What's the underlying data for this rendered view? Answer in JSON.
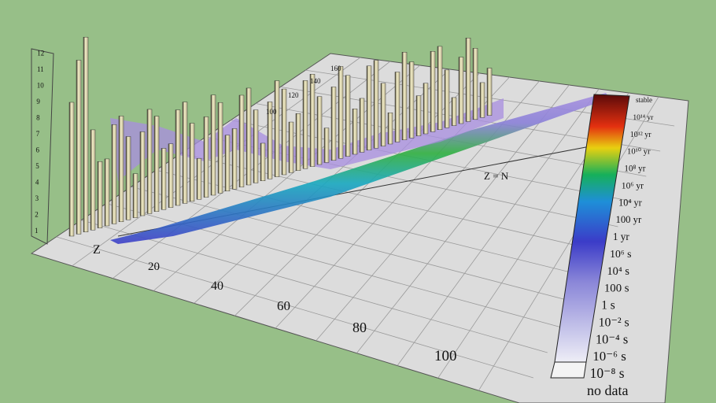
{
  "axes": {
    "z_label": "Z",
    "diagonal_label": "Z = N",
    "z_ticks": [
      20,
      40,
      60,
      80,
      100
    ],
    "n_ticks": [
      100,
      120,
      140,
      160
    ],
    "height_ticks": [
      1,
      2,
      3,
      4,
      5,
      6,
      7,
      8,
      9,
      10,
      11,
      12
    ]
  },
  "legend": {
    "labels": [
      "stable",
      "10¹⁴ yr",
      "10¹² yr",
      "10¹⁰ yr",
      "10⁸ yr",
      "10⁶ yr",
      "10⁴ yr",
      "100 yr",
      "1 yr",
      "10⁶ s",
      "10⁴ s",
      "100 s",
      "1 s",
      "10⁻² s",
      "10⁻⁴ s",
      "10⁻⁶ s",
      "10⁻⁸ s",
      "no data"
    ]
  }
}
